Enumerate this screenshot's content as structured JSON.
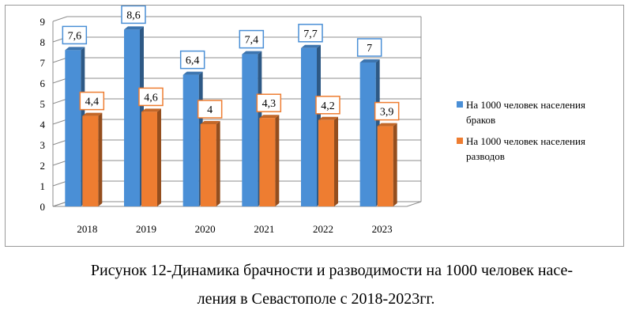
{
  "chart_data": {
    "type": "bar",
    "categories": [
      "2018",
      "2019",
      "2020",
      "2021",
      "2022",
      "2023"
    ],
    "series": [
      {
        "name": "На 1000 человек населения браков",
        "legend_lines": [
          "На 1000 человек населения",
          "браков"
        ],
        "color": "#4a8fd6",
        "values": [
          7.6,
          8.6,
          6.4,
          7.4,
          7.7,
          7.0
        ],
        "labels": [
          "7,6",
          "8,6",
          "6,4",
          "7,4",
          "7,7",
          "7"
        ]
      },
      {
        "name": "На 1000 человек населения разводов",
        "legend_lines": [
          "На 1000 человек населения",
          "разводов"
        ],
        "color": "#ee7d31",
        "values": [
          4.4,
          4.6,
          4.0,
          4.3,
          4.2,
          3.9
        ],
        "labels": [
          "4,4",
          "4,6",
          "4",
          "4,3",
          "4,2",
          "3,9"
        ]
      }
    ],
    "yticks": [
      "0",
      "1",
      "2",
      "3",
      "4",
      "5",
      "6",
      "7",
      "8",
      "9"
    ],
    "ylim": [
      0,
      9
    ],
    "grid": true,
    "legend": "right"
  },
  "caption": {
    "line1": "Рисунок 12-Динамика брачности и разводимости на 1000 человек насе-",
    "line2": "ления в Севастополе с 2018-2023гг."
  }
}
